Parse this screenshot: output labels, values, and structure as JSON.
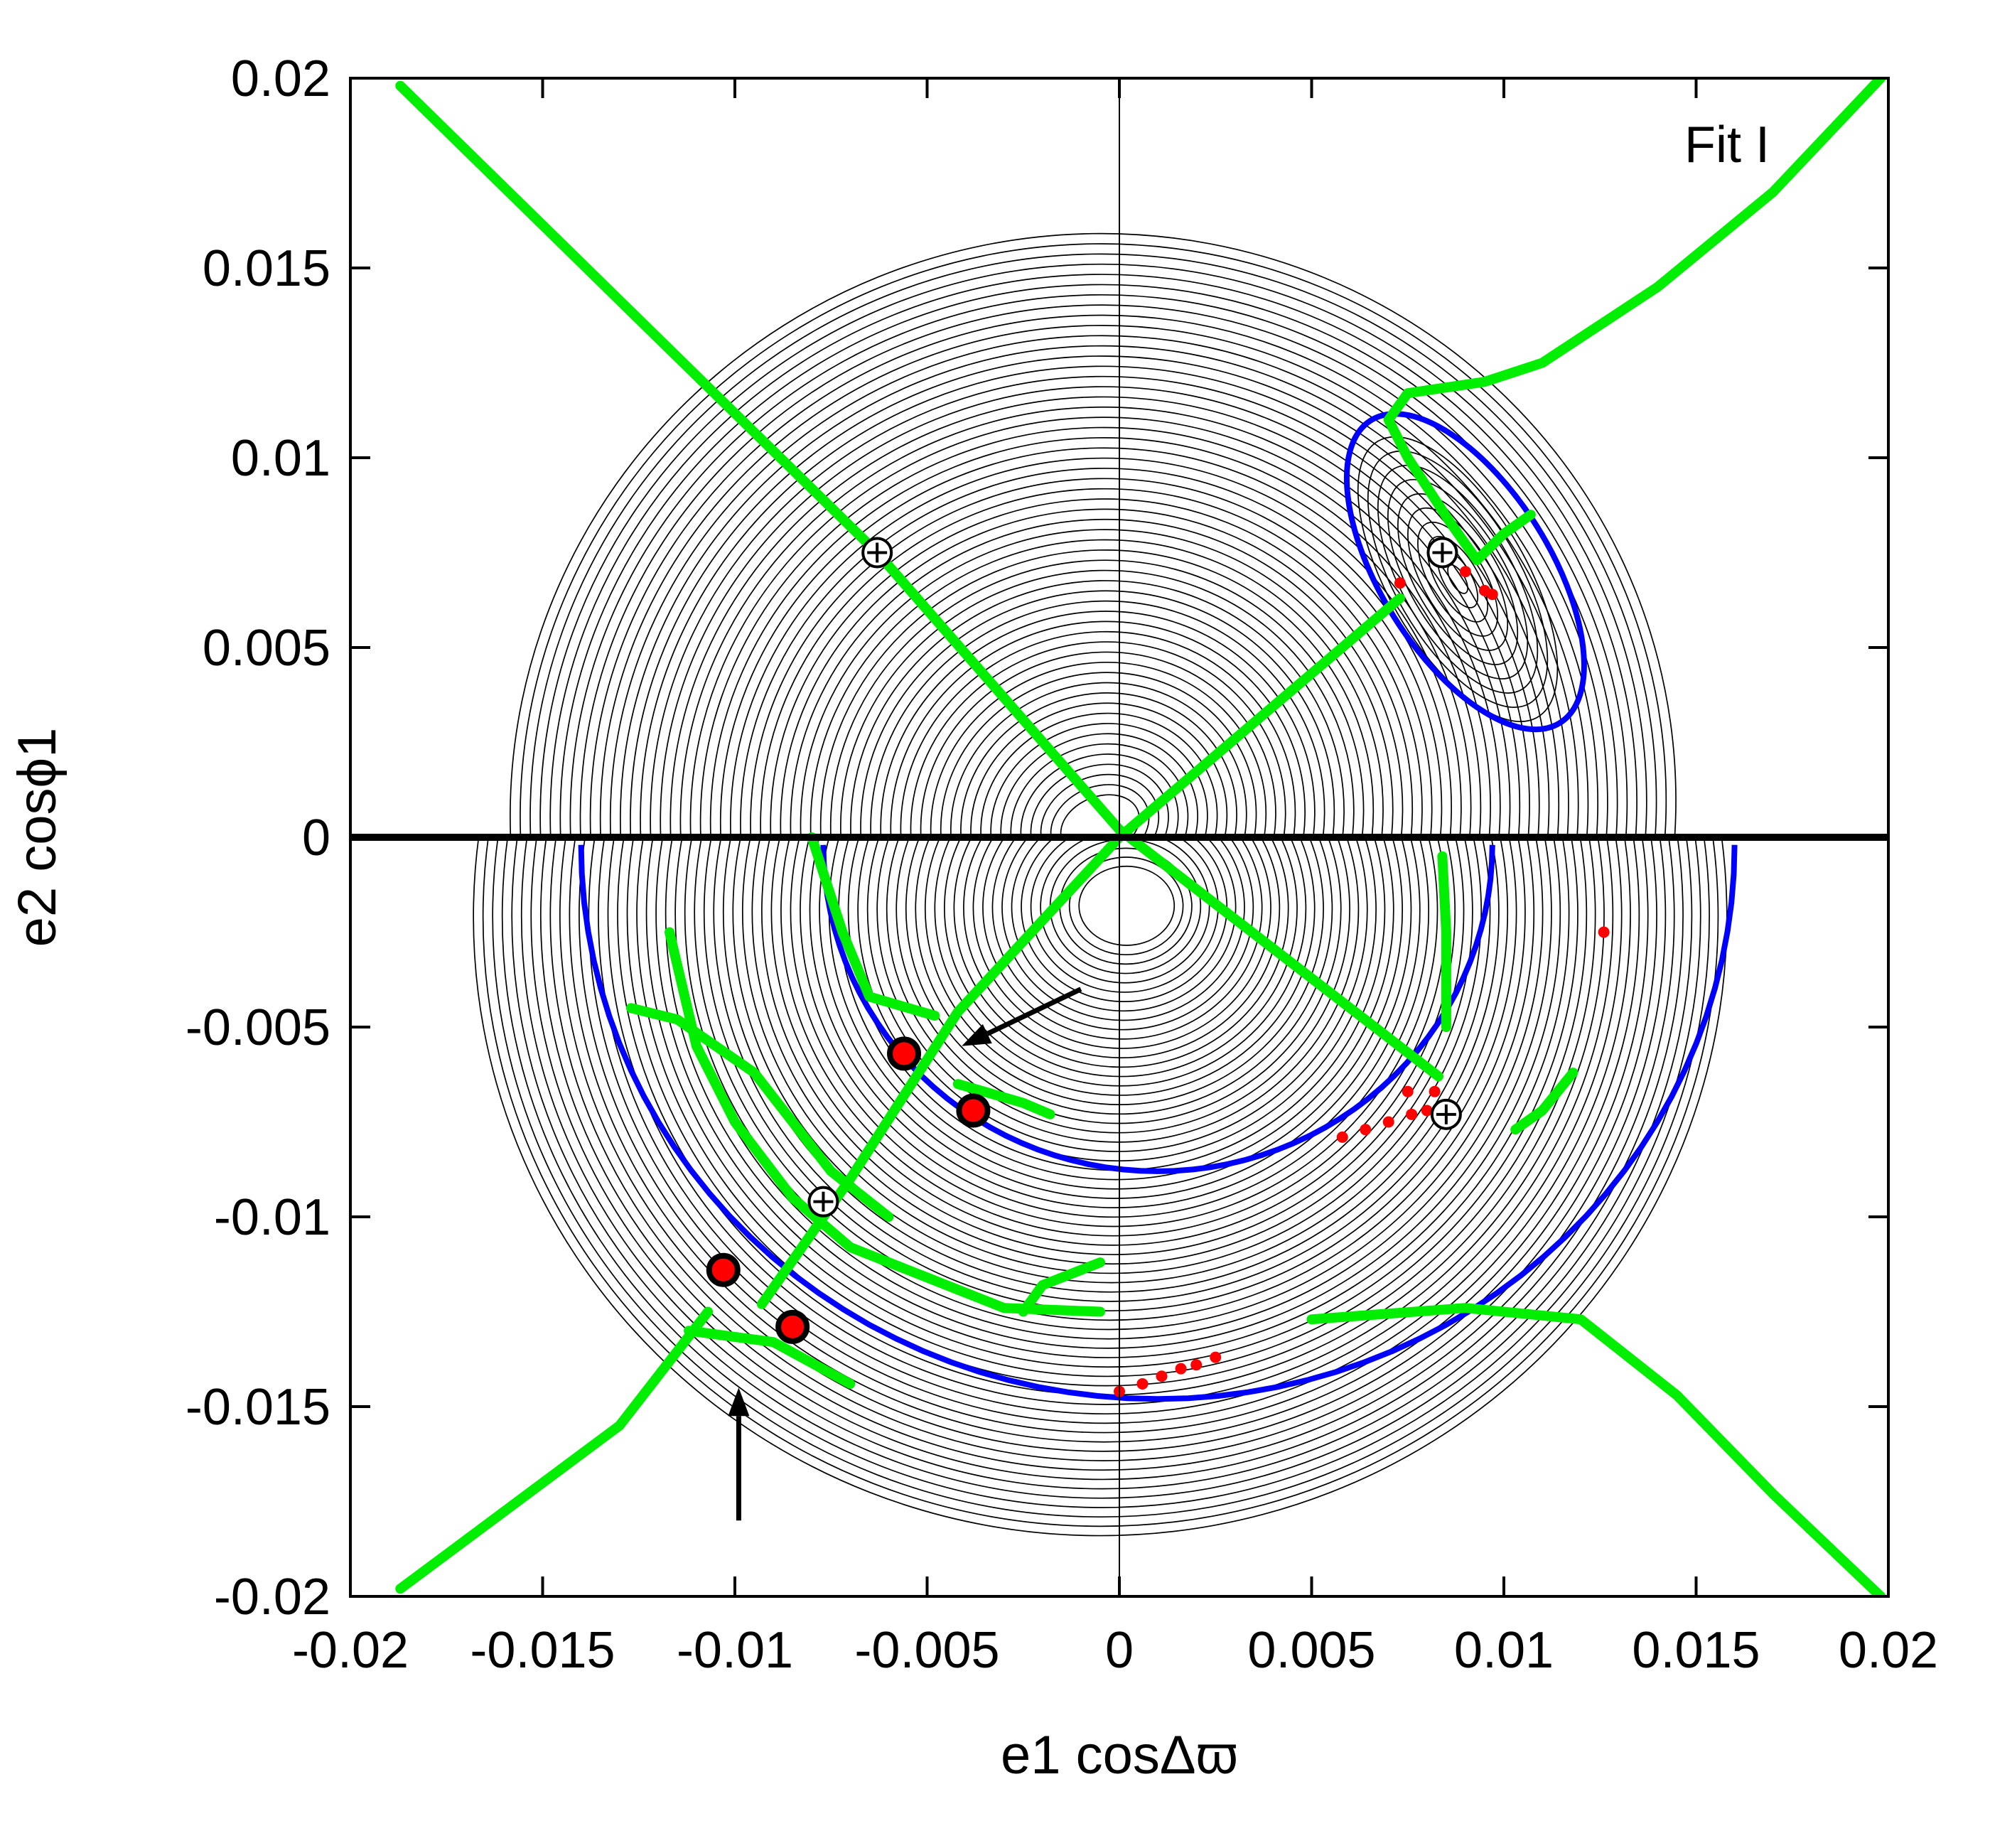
{
  "chart_data": {
    "type": "scatter",
    "title": "",
    "annotation": "Fit I",
    "xlabel": "e1 cosΔϖ",
    "ylabel": "e2 cosϕ1",
    "xlim": [
      -0.02,
      0.02
    ],
    "ylim": [
      -0.02,
      0.02
    ],
    "x_ticks": [
      "-0.02",
      "-0.015",
      "-0.01",
      "-0.005",
      "0",
      "0.005",
      "0.01",
      "0.015",
      "0.02"
    ],
    "y_ticks": [
      "0.02",
      "0.015",
      "0.01",
      "0.005",
      "0",
      "-0.005",
      "-0.01",
      "-0.015",
      "-0.02"
    ],
    "colors": {
      "contour": "#000000",
      "separatrix": "#0000ff",
      "stationary_curves": "#00ff00",
      "points": "#ff0000"
    },
    "saddle_markers": [
      {
        "x": -0.0063,
        "y": 0.0075
      },
      {
        "x": 0.0084,
        "y": 0.0075
      },
      {
        "x": 0.0085,
        "y": -0.0073
      },
      {
        "x": -0.0077,
        "y": -0.0096
      }
    ],
    "red_circles": [
      {
        "x": -0.0056,
        "y": -0.0057
      },
      {
        "x": -0.0038,
        "y": -0.0072
      },
      {
        "x": -0.0103,
        "y": -0.0114
      },
      {
        "x": -0.0085,
        "y": -0.0129
      }
    ],
    "red_points": [
      {
        "x": 0.0073,
        "y": 0.0067
      },
      {
        "x": 0.009,
        "y": 0.007
      },
      {
        "x": 0.0095,
        "y": 0.0065
      },
      {
        "x": 0.0097,
        "y": 0.0064
      },
      {
        "x": 0.0126,
        "y": -0.0025
      },
      {
        "x": 0.0075,
        "y": -0.0067
      },
      {
        "x": 0.0082,
        "y": -0.0067
      },
      {
        "x": 0.0058,
        "y": -0.0079
      },
      {
        "x": 0.0064,
        "y": -0.0077
      },
      {
        "x": 0.007,
        "y": -0.0075
      },
      {
        "x": 0.0076,
        "y": -0.0073
      },
      {
        "x": 0.008,
        "y": -0.0072
      },
      {
        "x": 0.0,
        "y": -0.0146
      },
      {
        "x": 0.0006,
        "y": -0.0144
      },
      {
        "x": 0.0011,
        "y": -0.0142
      },
      {
        "x": 0.0016,
        "y": -0.014
      },
      {
        "x": 0.002,
        "y": -0.0139
      },
      {
        "x": 0.0025,
        "y": -0.0137
      }
    ],
    "arrows": [
      {
        "from": [
          -0.001,
          -0.004
        ],
        "to": [
          -0.0041,
          -0.0055
        ]
      },
      {
        "from": [
          -0.0099,
          -0.018
        ],
        "to": [
          -0.0099,
          -0.0145
        ]
      }
    ]
  }
}
